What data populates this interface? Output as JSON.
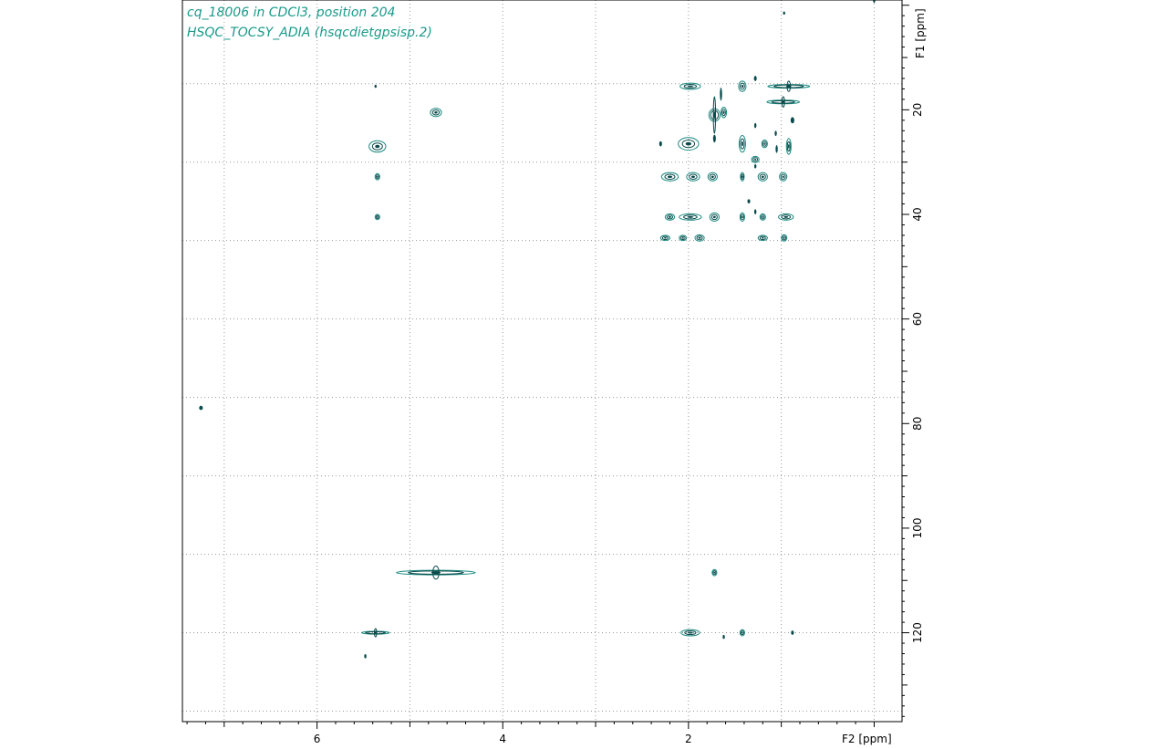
{
  "header": {
    "line1": "cq_18006 in CDCl3, position 204",
    "line2": "HSQC_TOCSY_ADIA (hsqcdietgpsisp.2)"
  },
  "colors": {
    "header_text": "#1a9a8a",
    "contour_dark": "#0b4a4a",
    "contour_light": "#1a8a80",
    "grid": "#9a9a9a",
    "frame": "#000000"
  },
  "chart_data": {
    "type": "scatter",
    "kind": "2D NMR contour plot",
    "title": "",
    "xlabel": "F2 [ppm]",
    "ylabel": "F1 [ppm]",
    "x_reversed": true,
    "xlim": [
      7.45,
      -0.3
    ],
    "ylim": [
      -1,
      137
    ],
    "x_ticks": [
      6,
      4,
      2
    ],
    "y_ticks": [
      20,
      40,
      60,
      80,
      100,
      120
    ],
    "grid": true,
    "legend": "none",
    "peaks": [
      {
        "x": 0.0,
        "y": -1.0,
        "w": 0.02,
        "h": 1.2,
        "type": "dot"
      },
      {
        "x": 0.97,
        "y": 1.5,
        "w": 0.015,
        "h": 0.6,
        "type": "dot"
      },
      {
        "x": 5.37,
        "y": 15.5,
        "w": 0.02,
        "h": 0.6,
        "type": "dot"
      },
      {
        "x": 4.72,
        "y": 20.5,
        "w": 0.12,
        "h": 1.6,
        "type": "blob"
      },
      {
        "x": 5.35,
        "y": 27.0,
        "w": 0.18,
        "h": 2.2,
        "type": "blob"
      },
      {
        "x": 5.35,
        "y": 32.8,
        "w": 0.05,
        "h": 1.2,
        "type": "blob"
      },
      {
        "x": 5.35,
        "y": 40.5,
        "w": 0.05,
        "h": 1.0,
        "type": "blob"
      },
      {
        "x": 1.98,
        "y": 15.5,
        "w": 0.22,
        "h": 1.2,
        "type": "blob"
      },
      {
        "x": 1.42,
        "y": 15.5,
        "w": 0.08,
        "h": 2.0,
        "type": "blob"
      },
      {
        "x": 1.28,
        "y": 14.0,
        "w": 0.03,
        "h": 1.0,
        "type": "dot"
      },
      {
        "x": 0.92,
        "y": 15.5,
        "w": 0.45,
        "h": 2.0,
        "type": "cross"
      },
      {
        "x": 0.98,
        "y": 18.5,
        "w": 0.35,
        "h": 2.0,
        "type": "cross"
      },
      {
        "x": 0.88,
        "y": 22.0,
        "w": 0.04,
        "h": 1.2,
        "type": "dot"
      },
      {
        "x": 1.72,
        "y": 21.0,
        "w": 0.12,
        "h": 7.0,
        "type": "cross"
      },
      {
        "x": 1.62,
        "y": 20.5,
        "w": 0.06,
        "h": 2.0,
        "type": "blob"
      },
      {
        "x": 1.65,
        "y": 17.0,
        "w": 0.02,
        "h": 2.5,
        "type": "dot"
      },
      {
        "x": 1.28,
        "y": 23.0,
        "w": 0.02,
        "h": 1.0,
        "type": "dot"
      },
      {
        "x": 1.06,
        "y": 24.5,
        "w": 0.02,
        "h": 1.0,
        "type": "dot"
      },
      {
        "x": 2.3,
        "y": 26.5,
        "w": 0.03,
        "h": 1.0,
        "type": "dot"
      },
      {
        "x": 2.0,
        "y": 26.5,
        "w": 0.22,
        "h": 2.4,
        "type": "blob"
      },
      {
        "x": 1.72,
        "y": 25.5,
        "w": 0.03,
        "h": 1.5,
        "type": "dot"
      },
      {
        "x": 1.42,
        "y": 26.5,
        "w": 0.07,
        "h": 3.2,
        "type": "blob"
      },
      {
        "x": 1.18,
        "y": 26.5,
        "w": 0.06,
        "h": 1.5,
        "type": "blob"
      },
      {
        "x": 1.05,
        "y": 27.5,
        "w": 0.02,
        "h": 1.5,
        "type": "dot"
      },
      {
        "x": 0.92,
        "y": 27.0,
        "w": 0.05,
        "h": 3.0,
        "type": "blob"
      },
      {
        "x": 1.28,
        "y": 29.5,
        "w": 0.08,
        "h": 1.2,
        "type": "blob"
      },
      {
        "x": 1.28,
        "y": 30.8,
        "w": 0.02,
        "h": 0.8,
        "type": "dot"
      },
      {
        "x": 2.2,
        "y": 32.8,
        "w": 0.18,
        "h": 1.6,
        "type": "blob"
      },
      {
        "x": 1.95,
        "y": 32.8,
        "w": 0.14,
        "h": 1.6,
        "type": "blob"
      },
      {
        "x": 1.74,
        "y": 32.8,
        "w": 0.1,
        "h": 1.6,
        "type": "blob"
      },
      {
        "x": 1.42,
        "y": 32.8,
        "w": 0.04,
        "h": 1.6,
        "type": "blob"
      },
      {
        "x": 1.2,
        "y": 32.8,
        "w": 0.1,
        "h": 1.6,
        "type": "blob"
      },
      {
        "x": 0.98,
        "y": 32.8,
        "w": 0.08,
        "h": 1.6,
        "type": "blob"
      },
      {
        "x": 1.35,
        "y": 37.5,
        "w": 0.03,
        "h": 0.8,
        "type": "dot"
      },
      {
        "x": 2.2,
        "y": 40.5,
        "w": 0.1,
        "h": 1.2,
        "type": "blob"
      },
      {
        "x": 1.98,
        "y": 40.5,
        "w": 0.24,
        "h": 1.2,
        "type": "blob"
      },
      {
        "x": 1.72,
        "y": 40.5,
        "w": 0.1,
        "h": 1.6,
        "type": "blob"
      },
      {
        "x": 1.28,
        "y": 39.5,
        "w": 0.02,
        "h": 1.0,
        "type": "dot"
      },
      {
        "x": 1.42,
        "y": 40.5,
        "w": 0.05,
        "h": 1.6,
        "type": "blob"
      },
      {
        "x": 1.2,
        "y": 40.5,
        "w": 0.06,
        "h": 1.2,
        "type": "blob"
      },
      {
        "x": 0.95,
        "y": 40.5,
        "w": 0.16,
        "h": 1.2,
        "type": "blob"
      },
      {
        "x": 2.25,
        "y": 44.5,
        "w": 0.1,
        "h": 1.0,
        "type": "blob"
      },
      {
        "x": 2.06,
        "y": 44.5,
        "w": 0.08,
        "h": 1.0,
        "type": "blob"
      },
      {
        "x": 1.88,
        "y": 44.5,
        "w": 0.1,
        "h": 1.2,
        "type": "blob"
      },
      {
        "x": 1.2,
        "y": 44.5,
        "w": 0.1,
        "h": 1.0,
        "type": "blob"
      },
      {
        "x": 0.97,
        "y": 44.5,
        "w": 0.06,
        "h": 1.2,
        "type": "blob"
      },
      {
        "x": 7.25,
        "y": 77.0,
        "w": 0.04,
        "h": 0.8,
        "type": "dot"
      },
      {
        "x": 4.72,
        "y": 108.5,
        "w": 0.85,
        "h": 2.5,
        "type": "cross"
      },
      {
        "x": 1.72,
        "y": 108.5,
        "w": 0.05,
        "h": 1.2,
        "type": "blob"
      },
      {
        "x": 5.37,
        "y": 120.0,
        "w": 0.3,
        "h": 1.6,
        "type": "cross"
      },
      {
        "x": 5.48,
        "y": 124.5,
        "w": 0.02,
        "h": 0.8,
        "type": "dot"
      },
      {
        "x": 1.98,
        "y": 120.0,
        "w": 0.2,
        "h": 1.2,
        "type": "blob"
      },
      {
        "x": 1.62,
        "y": 120.8,
        "w": 0.02,
        "h": 0.8,
        "type": "dot"
      },
      {
        "x": 1.42,
        "y": 120.0,
        "w": 0.05,
        "h": 1.2,
        "type": "blob"
      },
      {
        "x": 0.88,
        "y": 120.0,
        "w": 0.03,
        "h": 0.8,
        "type": "dot"
      }
    ]
  }
}
